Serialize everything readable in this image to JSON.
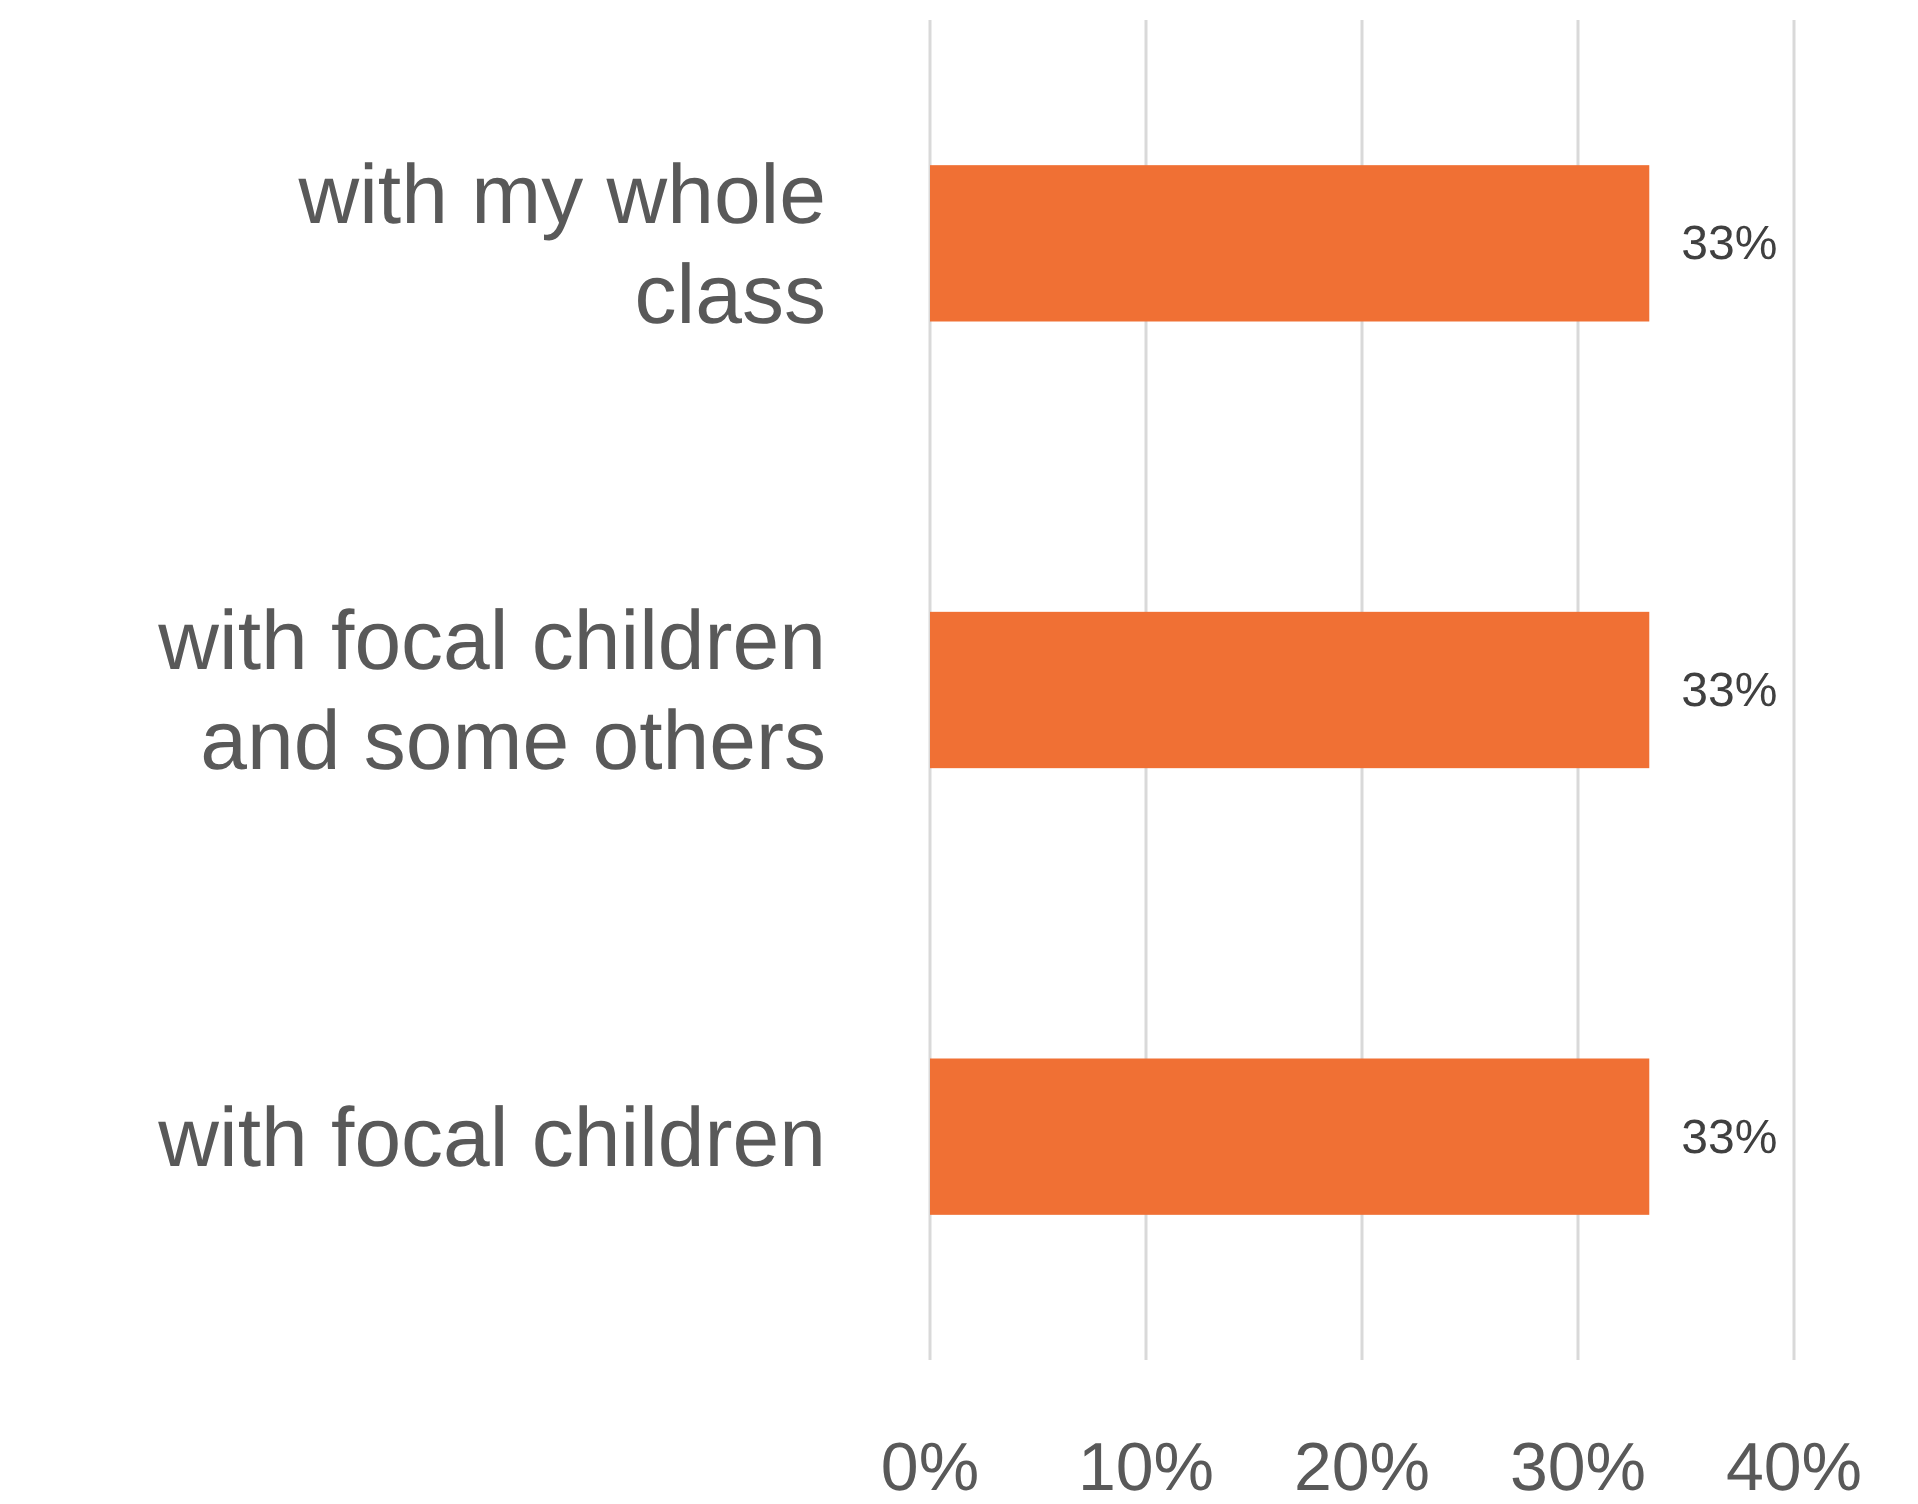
{
  "chart_data": {
    "type": "bar",
    "orientation": "horizontal",
    "categories": [
      "with my whole class",
      "with focal children and some others",
      "with focal children"
    ],
    "values": [
      33.3,
      33.3,
      33.3
    ],
    "value_labels": [
      "33%",
      "33%",
      "33%"
    ],
    "color": "#f07034",
    "xlim": [
      0,
      40
    ],
    "xticks": [
      {
        "value": 0,
        "label": "0%"
      },
      {
        "value": 10,
        "label": "10%"
      },
      {
        "value": 20,
        "label": "20%"
      },
      {
        "value": 30,
        "label": "30%"
      },
      {
        "value": 40,
        "label": "40%"
      }
    ],
    "grid": "x"
  }
}
